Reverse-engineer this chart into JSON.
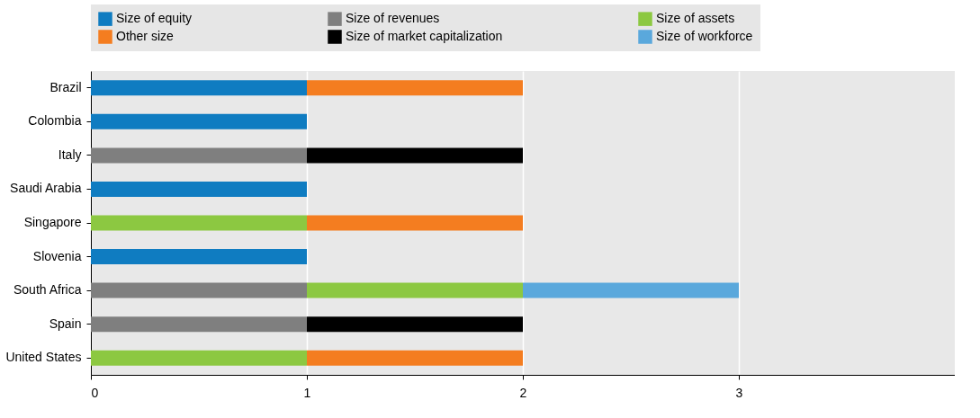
{
  "chart_data": {
    "type": "bar",
    "orientation": "horizontal",
    "stacked": true,
    "legend": "top",
    "grid": "x",
    "categories": [
      "Brazil",
      "Colombia",
      "Italy",
      "Saudi Arabia",
      "Singapore",
      "Slovenia",
      "South Africa",
      "Spain",
      "United States"
    ],
    "xlim": [
      0,
      4
    ],
    "xticks": [
      0,
      1,
      2,
      3
    ],
    "series": [
      {
        "name": "Size of equity",
        "color": "#0f7cc1",
        "values": [
          1,
          1,
          null,
          1,
          null,
          1,
          null,
          null,
          null
        ]
      },
      {
        "name": "Size of revenues",
        "color": "#7f7f7f",
        "values": [
          null,
          null,
          1,
          null,
          null,
          null,
          1,
          1,
          null
        ]
      },
      {
        "name": "Size of assets",
        "color": "#8cc841",
        "values": [
          null,
          null,
          null,
          null,
          1,
          null,
          1,
          null,
          1
        ]
      },
      {
        "name": "Other size",
        "color": "#f47d20",
        "values": [
          1,
          null,
          null,
          null,
          1,
          null,
          null,
          null,
          1
        ]
      },
      {
        "name": "Size of market capitalization",
        "color": "#000000",
        "values": [
          null,
          null,
          1,
          null,
          null,
          null,
          null,
          1,
          null
        ]
      },
      {
        "name": "Size of workforce",
        "color": "#5aa8dc",
        "values": [
          null,
          null,
          null,
          null,
          null,
          null,
          1,
          null,
          null
        ]
      }
    ]
  }
}
